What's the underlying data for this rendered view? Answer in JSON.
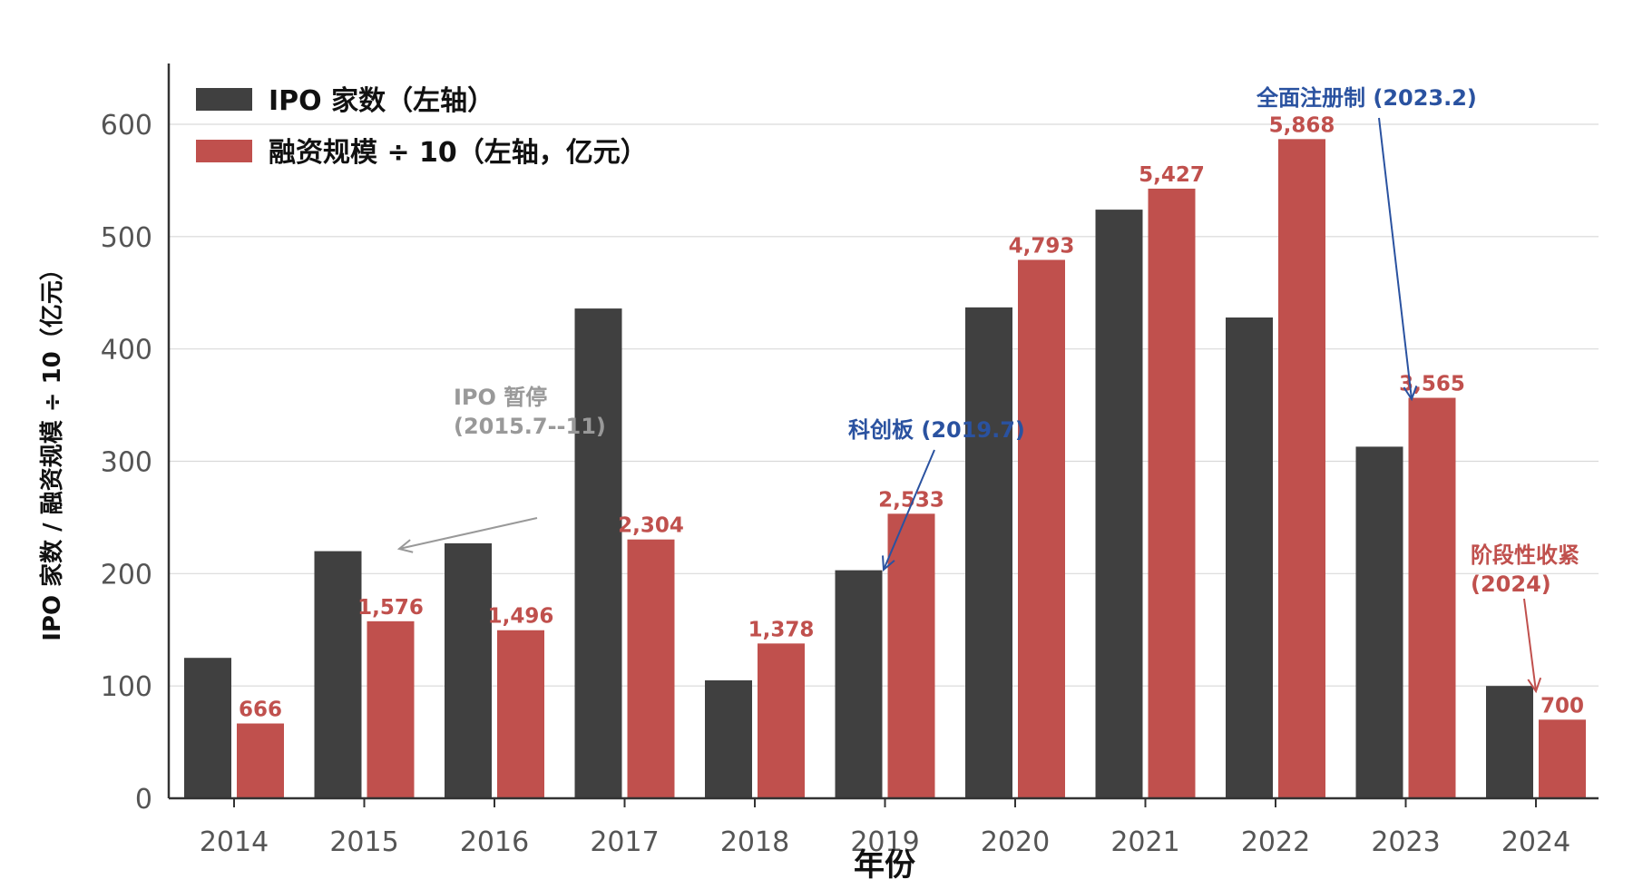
{
  "chart_data": {
    "type": "bar",
    "title": "",
    "xlabel": "年份",
    "ylabel": "IPO 家数 / 融资规模 ÷ 10（亿元）",
    "ylim": [
      0,
      650
    ],
    "yticks": [
      0,
      100,
      200,
      300,
      400,
      500,
      600
    ],
    "grid": true,
    "legend_position": "top-left",
    "categories": [
      "2014",
      "2015",
      "2016",
      "2017",
      "2018",
      "2019",
      "2020",
      "2021",
      "2022",
      "2023",
      "2024"
    ],
    "series": [
      {
        "name": "IPO 家数（左轴）",
        "color": "#404040",
        "values": [
          125,
          220,
          227,
          436,
          105,
          203,
          437,
          524,
          428,
          313,
          100
        ]
      },
      {
        "name": "融资规模 ÷ 10（左轴，亿元）",
        "color": "#c0504d",
        "raw_labels": [
          "666",
          "1,576",
          "1,496",
          "2,304",
          "1,378",
          "2,533",
          "4,793",
          "5,427",
          "5,868",
          "3,565",
          "700"
        ],
        "values": [
          66.6,
          157.6,
          149.6,
          230.4,
          137.8,
          253.3,
          479.3,
          542.7,
          586.8,
          356.5,
          70.0
        ]
      }
    ],
    "annotations": [
      {
        "lines": [
          "IPO 暂停",
          "(2015.7--11)"
        ],
        "color": "#999999",
        "category": "2015",
        "target_value": 220
      },
      {
        "lines": [
          "科创板 (2019.7)"
        ],
        "color": "#2a52a0",
        "category": "2019",
        "target_value": 203
      },
      {
        "lines": [
          "全面注册制 (2023.2)"
        ],
        "color": "#2a52a0",
        "category": "2023",
        "target_value": 356.5
      },
      {
        "lines": [
          "阶段性收紧",
          "(2024)"
        ],
        "color": "#c0504d",
        "category": "2024",
        "target_value": 100
      }
    ]
  }
}
